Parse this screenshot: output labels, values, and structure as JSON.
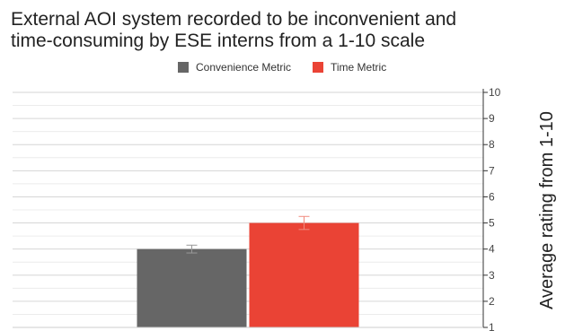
{
  "chart_data": {
    "type": "bar",
    "title": "External AOI system recorded to be inconvenient and\ntime-consuming by ESE interns from a 1-10 scale",
    "xlabel": "",
    "ylabel": "Average rating from 1-10",
    "ylim": [
      1,
      10
    ],
    "yticks": [
      "1",
      "2",
      "3",
      "4",
      "5",
      "6",
      "7",
      "8",
      "9",
      "10"
    ],
    "y_axis_position": "right",
    "grid": true,
    "legend_position": "top-center",
    "series": [
      {
        "name": "Convenience Metric",
        "color": "#666666",
        "value": 4.0,
        "error": 0.15
      },
      {
        "name": "Time Metric",
        "color": "#ea4335",
        "value": 5.0,
        "error": 0.25
      }
    ]
  }
}
